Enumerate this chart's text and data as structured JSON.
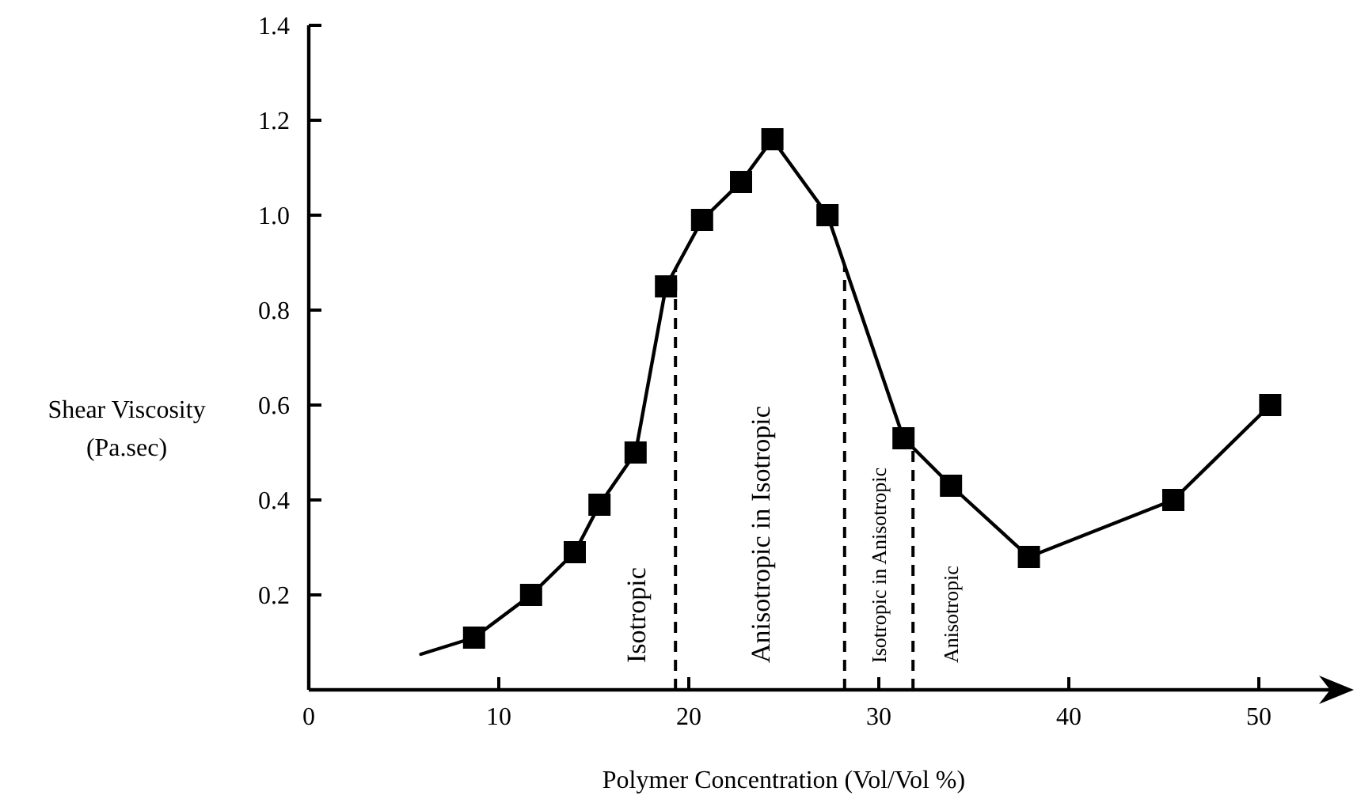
{
  "chart_data": {
    "type": "line",
    "xlabel": "Polymer Concentration (Vol/Vol %)",
    "ylabel": "Shear Viscosity\n(Pa.sec)",
    "xlim": [
      0,
      55
    ],
    "xticks": [
      0,
      10,
      20,
      30,
      40,
      50
    ],
    "ylim": [
      0,
      1.4
    ],
    "yticks": [
      0.2,
      0.4,
      0.6,
      0.8,
      {
        "value": 1,
        "label": "1.0"
      },
      1.2,
      1.4
    ],
    "grid": false,
    "series": [
      {
        "marker": "none",
        "line_style": "solid",
        "color": "#000000",
        "x": [
          5.9,
          8.7,
          11.7,
          14.0,
          15.3,
          17.2,
          18.8,
          20.7,
          22.75,
          24.4,
          27.3,
          31.3,
          33.8,
          37.9,
          45.5,
          50.6
        ],
        "values": [
          0.075,
          0.11,
          0.2,
          0.29,
          0.39,
          0.5,
          0.85,
          0.99,
          1.07,
          1.16,
          1.0,
          0.53,
          0.43,
          0.28,
          0.4,
          0.6
        ]
      },
      {
        "type": "scatter",
        "marker": "square",
        "color": "#000000",
        "x": [
          8.7,
          11.7,
          14.0,
          15.3,
          17.2,
          18.8,
          20.7,
          22.75,
          24.4,
          27.3,
          31.3,
          33.8,
          37.9,
          45.5,
          50.6
        ],
        "values": [
          0.11,
          0.2,
          0.29,
          0.39,
          0.5,
          0.85,
          0.99,
          1.07,
          1.16,
          1.0,
          0.53,
          0.43,
          0.28,
          0.4,
          0.6
        ]
      }
    ],
    "ref_lines": [
      {
        "axis": "x",
        "value": 19.3,
        "line_style": "dashed",
        "color": "#000000"
      },
      {
        "axis": "x",
        "value": 28.2,
        "line_style": "dashed",
        "color": "#000000"
      },
      {
        "axis": "x",
        "value": 31.8,
        "line_style": "dashed",
        "color": "#000000"
      }
    ],
    "annotations": [
      "Isotropic",
      "Anisotropic in Isotropic",
      "Isotropic in Anisotropic",
      "Anisotropic"
    ]
  }
}
